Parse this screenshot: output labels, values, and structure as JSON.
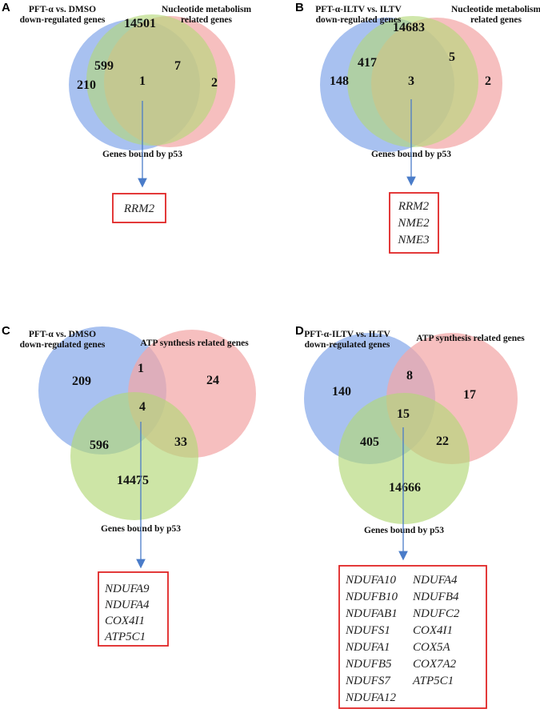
{
  "panels": {
    "A": {
      "letter": "A",
      "set1_label": [
        "PFT-α vs. DMSO",
        "down-regulated genes"
      ],
      "set2_label": [
        "Nucleotide metabolism",
        "related genes"
      ],
      "set3_label": "Genes bound by p53",
      "counts": {
        "only1": "210",
        "only3": "14501",
        "only2": "2",
        "c13": "599",
        "c32": "7",
        "center": "1"
      },
      "genes": [
        "RRM2"
      ]
    },
    "B": {
      "letter": "B",
      "set1_label": [
        "PFT-α-ILTV vs. ILTV",
        "down-regulated genes"
      ],
      "set2_label": [
        "Nucleotide metabolism",
        "related genes"
      ],
      "set3_label": "Genes bound by p53",
      "counts": {
        "only1": "148",
        "only3": "14683",
        "only2": "2",
        "c13": "417",
        "c32": "5",
        "center": "3"
      },
      "genes": [
        "RRM2",
        "NME2",
        "NME3"
      ]
    },
    "C": {
      "letter": "C",
      "set1_label": [
        "PFT-α vs. DMSO",
        "down-regulated genes"
      ],
      "set2_label": [
        "ATP synthesis related genes"
      ],
      "set3_label": "Genes bound by p53",
      "counts": {
        "only1": "209",
        "only2": "24",
        "only3": "14475",
        "c12": "1",
        "c13": "596",
        "c23": "33",
        "center": "4"
      },
      "genes": [
        "NDUFA9",
        "NDUFA4",
        "COX4I1",
        "ATP5C1"
      ]
    },
    "D": {
      "letter": "D",
      "set1_label": [
        "PFT-α-ILTV vs. ILTV",
        "down-regulated genes"
      ],
      "set2_label": [
        "ATP synthesis related genes"
      ],
      "set3_label": "Genes bound by p53",
      "counts": {
        "only1": "140",
        "only2": "17",
        "only3": "14666",
        "c12": "8",
        "c13": "405",
        "c23": "22",
        "center": "15"
      },
      "genes_col1": [
        "NDUFA10",
        "NDUFB10",
        "NDUFAB1",
        "NDUFS1",
        "NDUFA1",
        "NDUFB5",
        "NDUFS7",
        "NDUFA12"
      ],
      "genes_col2": [
        "NDUFA4",
        "NDUFB4",
        "NDUFC2",
        "COX4I1",
        "COX5A",
        "COX7A2",
        "ATP5C1"
      ]
    }
  },
  "colors": {
    "blue": "#8fb0ec",
    "green": "#b3d878",
    "red": "#f3a6a6",
    "arrow": "#4a7cc9",
    "box": "#e02424"
  }
}
